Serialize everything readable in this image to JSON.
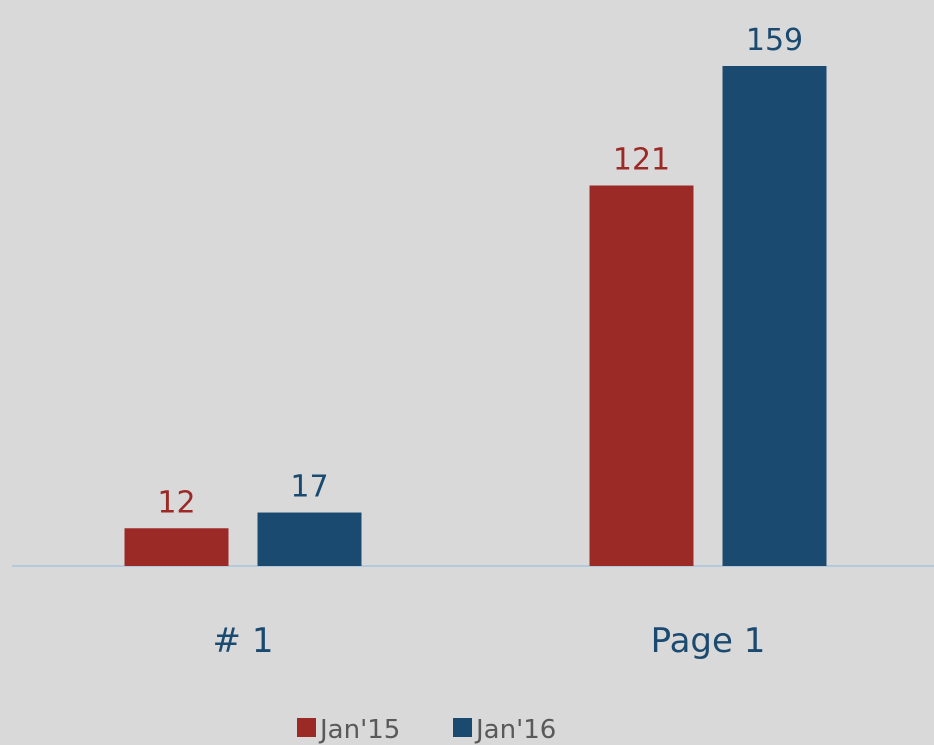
{
  "chart_data": {
    "type": "bar",
    "categories": [
      "# 1",
      "Page 1"
    ],
    "series": [
      {
        "name": "Jan'15",
        "color": "#9b2a27",
        "values": [
          12,
          121
        ]
      },
      {
        "name": "Jan'16",
        "color": "#1a4a70",
        "values": [
          17,
          159
        ]
      }
    ],
    "legend": "bottom"
  }
}
